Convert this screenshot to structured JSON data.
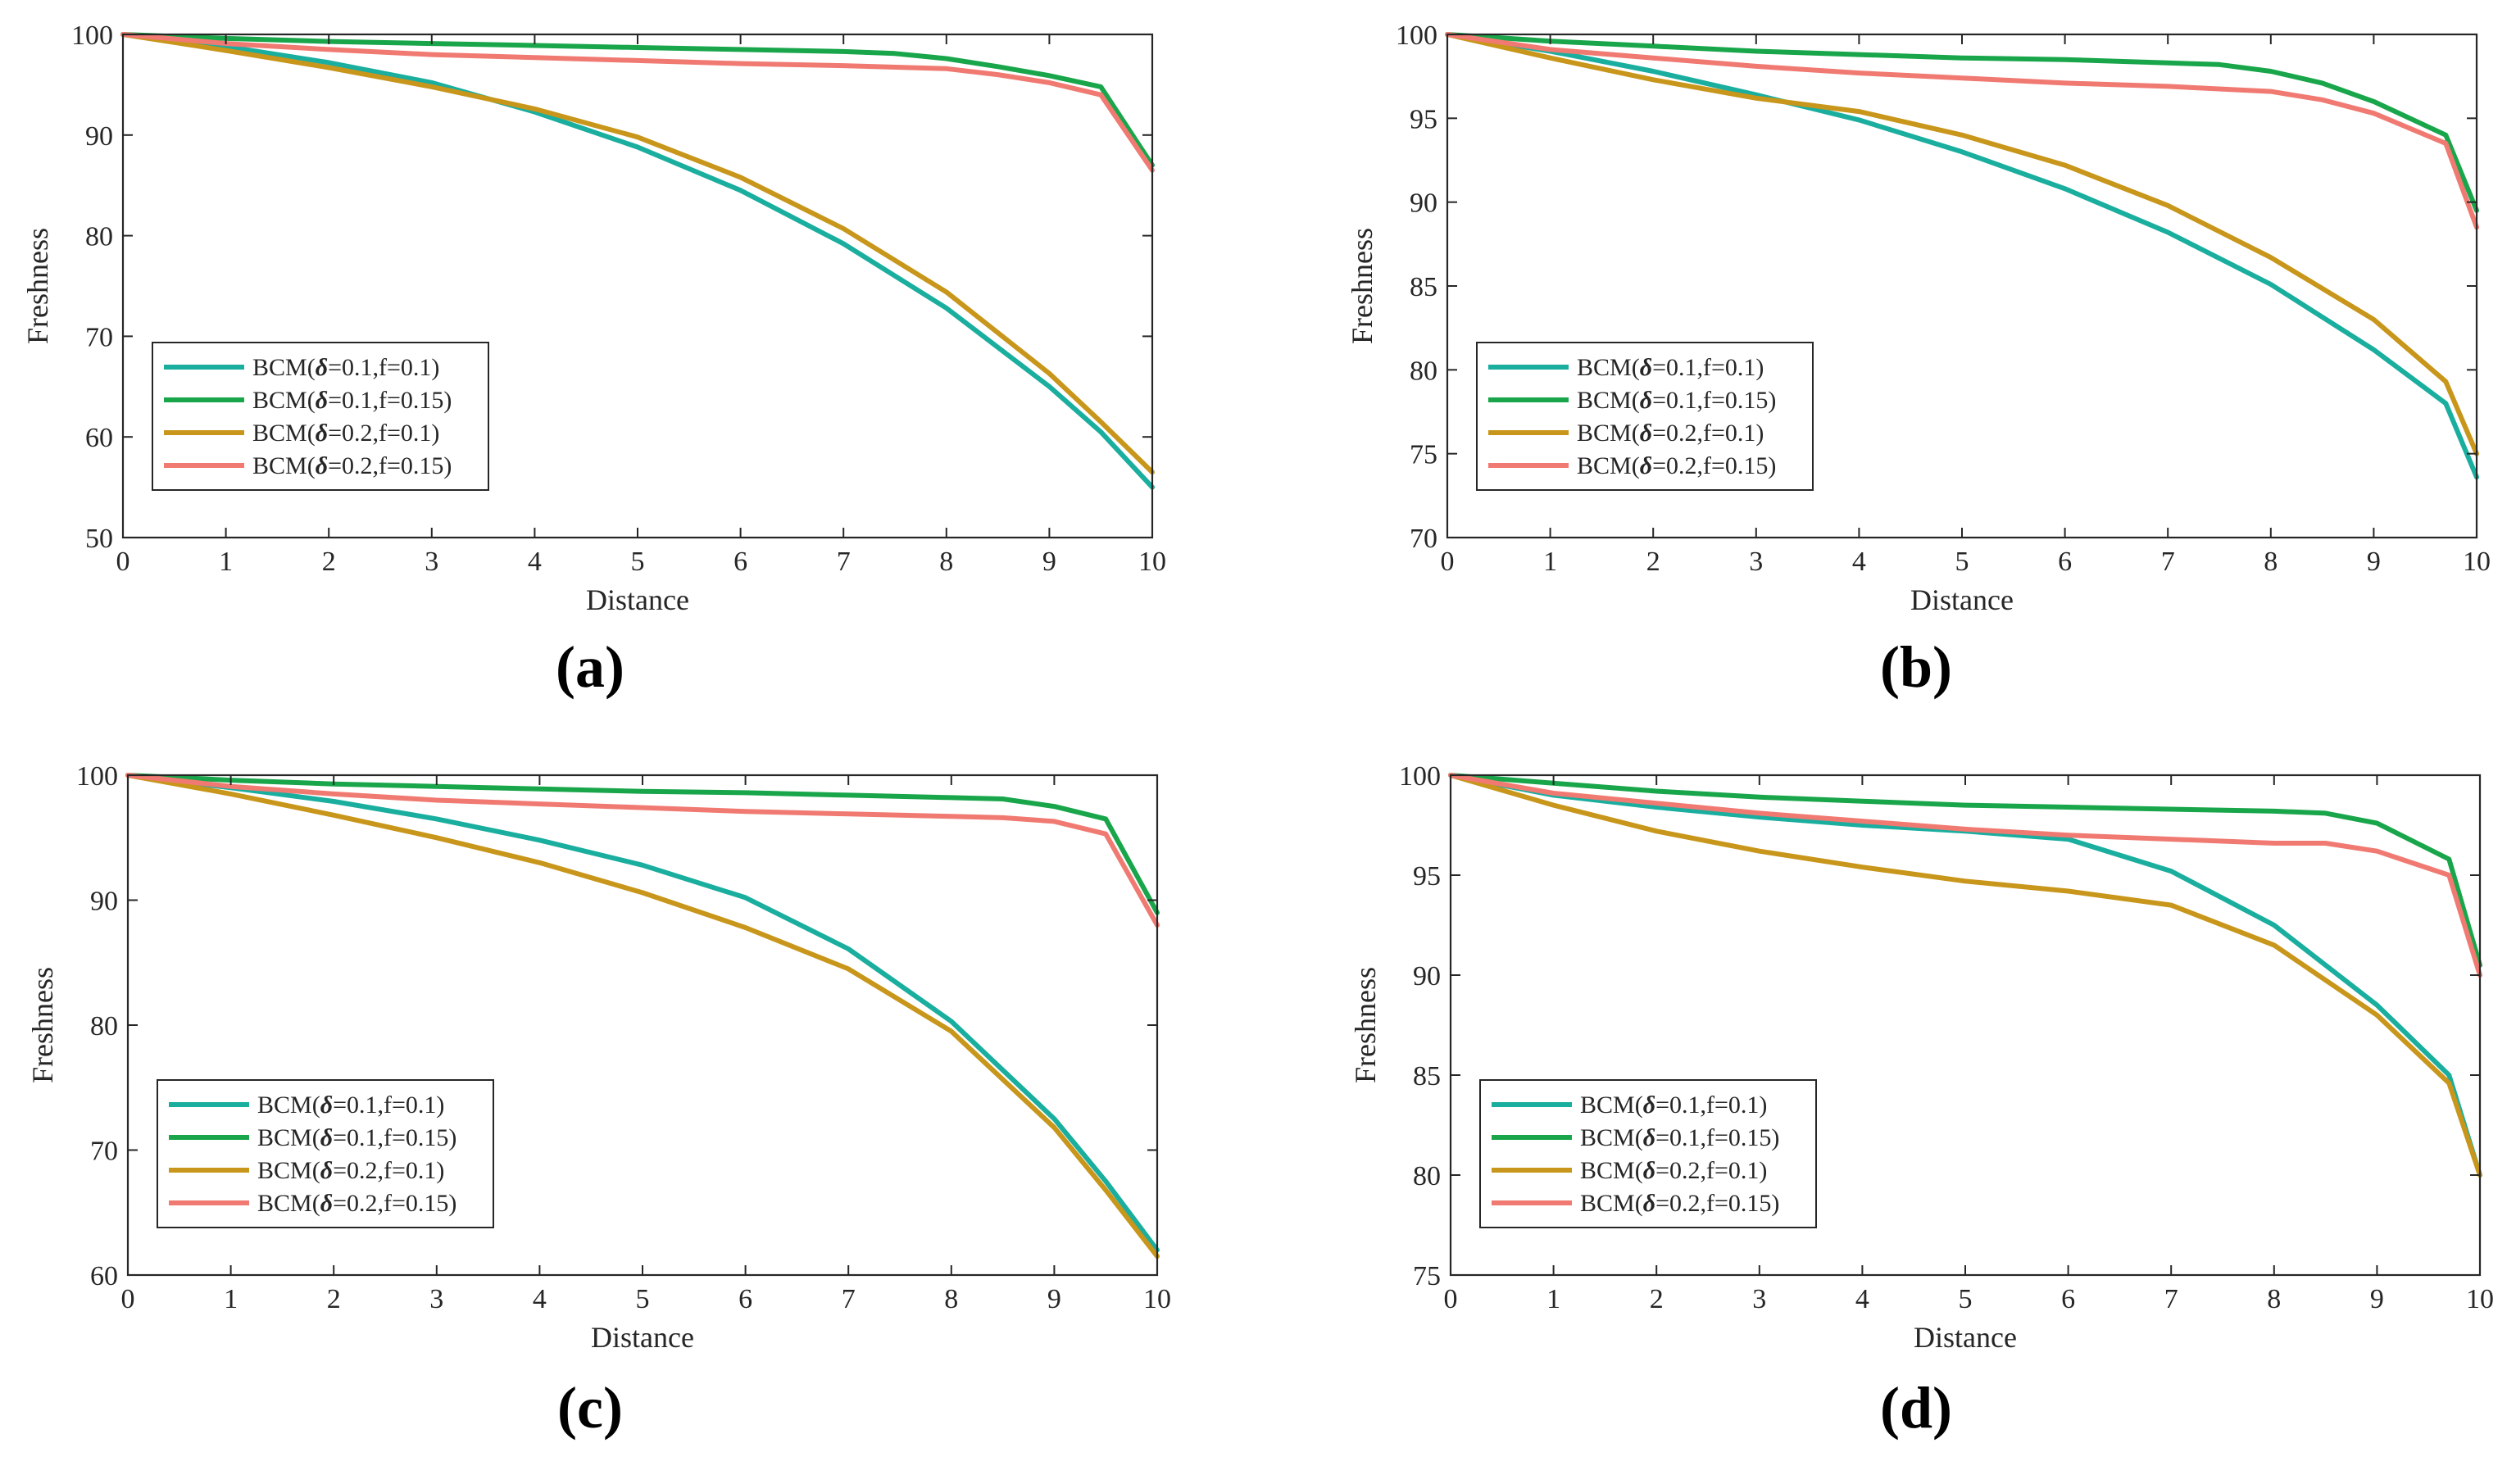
{
  "legend": {
    "prefix": "BCM(",
    "delta_symbol": "δ",
    "entries": [
      {
        "delta": "=0.1,f=0.1)"
      },
      {
        "delta": "=0.1,f=0.15)"
      },
      {
        "delta": "=0.2,f=0.1)"
      },
      {
        "delta": "=0.2,f=0.15)"
      }
    ]
  },
  "colors": {
    "teal": "#1AAE9F",
    "green": "#19A64B",
    "gold": "#C8961A",
    "salmon": "#F07A72"
  },
  "chart_data": [
    {
      "panel_label": "(a)",
      "type": "line",
      "xlabel": "Distance",
      "ylabel": "Freshness",
      "xlim": [
        0,
        10
      ],
      "ylim": [
        50,
        100
      ],
      "xticks": [
        0,
        1,
        2,
        3,
        4,
        5,
        6,
        7,
        8,
        9,
        10
      ],
      "yticks": [
        50,
        60,
        70,
        80,
        90,
        100
      ],
      "legend_position": "bottom-left",
      "series": [
        {
          "name": "BCM(δ=0.1,f=0.1)",
          "color": "#1AAE9F",
          "x": [
            0,
            1,
            2,
            3,
            4,
            5,
            6,
            7,
            8,
            9,
            9.5,
            10
          ],
          "y": [
            100,
            98.8,
            97.2,
            95.2,
            92.3,
            88.8,
            84.5,
            79.2,
            72.8,
            65.0,
            60.5,
            55.0
          ]
        },
        {
          "name": "BCM(δ=0.1,f=0.15)",
          "color": "#19A64B",
          "x": [
            0,
            1,
            2,
            3,
            4,
            5,
            6,
            7,
            7.5,
            8,
            8.5,
            9,
            9.5,
            10
          ],
          "y": [
            100,
            99.6,
            99.3,
            99.1,
            98.9,
            98.7,
            98.5,
            98.3,
            98.1,
            97.6,
            96.8,
            95.9,
            94.8,
            87.0
          ]
        },
        {
          "name": "BCM(δ=0.2,f=0.1)",
          "color": "#C8961A",
          "x": [
            0,
            1,
            2,
            3,
            4,
            5,
            6,
            7,
            8,
            9,
            9.5,
            10
          ],
          "y": [
            100,
            98.4,
            96.7,
            94.8,
            92.6,
            89.8,
            85.8,
            80.7,
            74.4,
            66.3,
            61.5,
            56.5
          ]
        },
        {
          "name": "BCM(δ=0.2,f=0.15)",
          "color": "#F07A72",
          "x": [
            0,
            1,
            2,
            3,
            4,
            5,
            6,
            7,
            8,
            8.5,
            9,
            9.5,
            10
          ],
          "y": [
            100,
            99.1,
            98.5,
            98.0,
            97.7,
            97.4,
            97.1,
            96.9,
            96.6,
            96.0,
            95.2,
            94.0,
            86.5
          ]
        }
      ]
    },
    {
      "panel_label": "(b)",
      "type": "line",
      "xlabel": "Distance",
      "ylabel": "Freshness",
      "xlim": [
        0,
        10
      ],
      "ylim": [
        70,
        100
      ],
      "xticks": [
        0,
        1,
        2,
        3,
        4,
        5,
        6,
        7,
        8,
        9,
        10
      ],
      "yticks": [
        70,
        75,
        80,
        85,
        90,
        95,
        100
      ],
      "legend_position": "bottom-left",
      "series": [
        {
          "name": "BCM(δ=0.1,f=0.1)",
          "color": "#1AAE9F",
          "x": [
            0,
            1,
            2,
            3,
            4,
            5,
            6,
            7,
            8,
            9,
            9.7,
            10
          ],
          "y": [
            100,
            99.0,
            97.8,
            96.4,
            94.9,
            93.0,
            90.8,
            88.2,
            85.1,
            81.2,
            78.0,
            73.6
          ]
        },
        {
          "name": "BCM(δ=0.1,f=0.15)",
          "color": "#19A64B",
          "x": [
            0,
            1,
            2,
            3,
            4,
            5,
            6,
            7,
            7.5,
            8,
            8.5,
            9,
            9.7,
            10
          ],
          "y": [
            100,
            99.6,
            99.3,
            99.0,
            98.8,
            98.6,
            98.5,
            98.3,
            98.2,
            97.8,
            97.1,
            96.0,
            94.0,
            89.5
          ]
        },
        {
          "name": "BCM(δ=0.2,f=0.1)",
          "color": "#C8961A",
          "x": [
            0,
            1,
            2,
            3,
            4,
            5,
            6,
            7,
            8,
            9,
            9.7,
            10
          ],
          "y": [
            100,
            98.6,
            97.3,
            96.2,
            95.4,
            94.0,
            92.2,
            89.8,
            86.7,
            83.0,
            79.3,
            75.0
          ]
        },
        {
          "name": "BCM(δ=0.2,f=0.15)",
          "color": "#F07A72",
          "x": [
            0,
            1,
            2,
            3,
            4,
            5,
            6,
            7,
            8,
            8.5,
            9,
            9.7,
            10
          ],
          "y": [
            100,
            99.1,
            98.6,
            98.1,
            97.7,
            97.4,
            97.1,
            96.9,
            96.6,
            96.1,
            95.3,
            93.5,
            88.5
          ]
        }
      ]
    },
    {
      "panel_label": "(c)",
      "type": "line",
      "xlabel": "Distance",
      "ylabel": "Freshness",
      "xlim": [
        0,
        10
      ],
      "ylim": [
        60,
        100
      ],
      "xticks": [
        0,
        1,
        2,
        3,
        4,
        5,
        6,
        7,
        8,
        9,
        10
      ],
      "yticks": [
        60,
        70,
        80,
        90,
        100
      ],
      "legend_position": "bottom-left",
      "series": [
        {
          "name": "BCM(δ=0.1,f=0.1)",
          "color": "#1AAE9F",
          "x": [
            0,
            1,
            2,
            3,
            4,
            5,
            6,
            7,
            8,
            9,
            9.5,
            10
          ],
          "y": [
            100,
            99.0,
            97.9,
            96.5,
            94.8,
            92.8,
            90.2,
            86.1,
            80.3,
            72.5,
            67.5,
            62.0
          ]
        },
        {
          "name": "BCM(δ=0.1,f=0.15)",
          "color": "#19A64B",
          "x": [
            0,
            1,
            2,
            3,
            4,
            5,
            6,
            7,
            7.5,
            8,
            8.5,
            9,
            9.5,
            10
          ],
          "y": [
            100,
            99.6,
            99.3,
            99.1,
            98.9,
            98.7,
            98.6,
            98.4,
            98.3,
            98.2,
            98.1,
            97.5,
            96.5,
            89.0
          ]
        },
        {
          "name": "BCM(δ=0.2,f=0.1)",
          "color": "#C8961A",
          "x": [
            0,
            1,
            2,
            3,
            4,
            5,
            6,
            7,
            8,
            9,
            9.5,
            10
          ],
          "y": [
            100,
            98.5,
            96.8,
            95.0,
            93.0,
            90.6,
            87.8,
            84.5,
            79.5,
            71.8,
            66.8,
            61.5
          ]
        },
        {
          "name": "BCM(δ=0.2,f=0.15)",
          "color": "#F07A72",
          "x": [
            0,
            1,
            2,
            3,
            4,
            5,
            6,
            7,
            8,
            8.5,
            9,
            9.5,
            10
          ],
          "y": [
            100,
            99.1,
            98.5,
            98.0,
            97.7,
            97.4,
            97.1,
            96.9,
            96.7,
            96.6,
            96.3,
            95.3,
            88.0
          ]
        }
      ]
    },
    {
      "panel_label": "(d)",
      "type": "line",
      "xlabel": "Distance",
      "ylabel": "Freshness",
      "xlim": [
        0,
        10
      ],
      "ylim": [
        75,
        100
      ],
      "xticks": [
        0,
        1,
        2,
        3,
        4,
        5,
        6,
        7,
        8,
        9,
        10
      ],
      "yticks": [
        75,
        80,
        85,
        90,
        95,
        100
      ],
      "legend_position": "bottom-left",
      "series": [
        {
          "name": "BCM(δ=0.1,f=0.1)",
          "color": "#1AAE9F",
          "x": [
            0,
            1,
            2,
            3,
            4,
            5,
            6,
            7,
            8,
            9,
            9.7,
            10
          ],
          "y": [
            100,
            99.0,
            98.4,
            97.9,
            97.5,
            97.2,
            96.8,
            95.2,
            92.5,
            88.5,
            85.0,
            80.0
          ]
        },
        {
          "name": "BCM(δ=0.1,f=0.15)",
          "color": "#19A64B",
          "x": [
            0,
            1,
            2,
            3,
            4,
            5,
            6,
            7,
            8,
            8.5,
            9,
            9.7,
            10
          ],
          "y": [
            100,
            99.6,
            99.2,
            98.9,
            98.7,
            98.5,
            98.4,
            98.3,
            98.2,
            98.1,
            97.6,
            95.8,
            90.5
          ]
        },
        {
          "name": "BCM(δ=0.2,f=0.1)",
          "color": "#C8961A",
          "x": [
            0,
            1,
            2,
            3,
            4,
            5,
            6,
            7,
            8,
            9,
            9.7,
            10
          ],
          "y": [
            100,
            98.5,
            97.2,
            96.2,
            95.4,
            94.7,
            94.2,
            93.5,
            91.5,
            88.0,
            84.6,
            80.0
          ]
        },
        {
          "name": "BCM(δ=0.2,f=0.15)",
          "color": "#F07A72",
          "x": [
            0,
            1,
            2,
            3,
            4,
            5,
            6,
            7,
            8,
            8.5,
            9,
            9.7,
            10
          ],
          "y": [
            100,
            99.1,
            98.6,
            98.1,
            97.7,
            97.3,
            97.0,
            96.8,
            96.6,
            96.6,
            96.2,
            95.0,
            90.0
          ]
        }
      ]
    }
  ]
}
